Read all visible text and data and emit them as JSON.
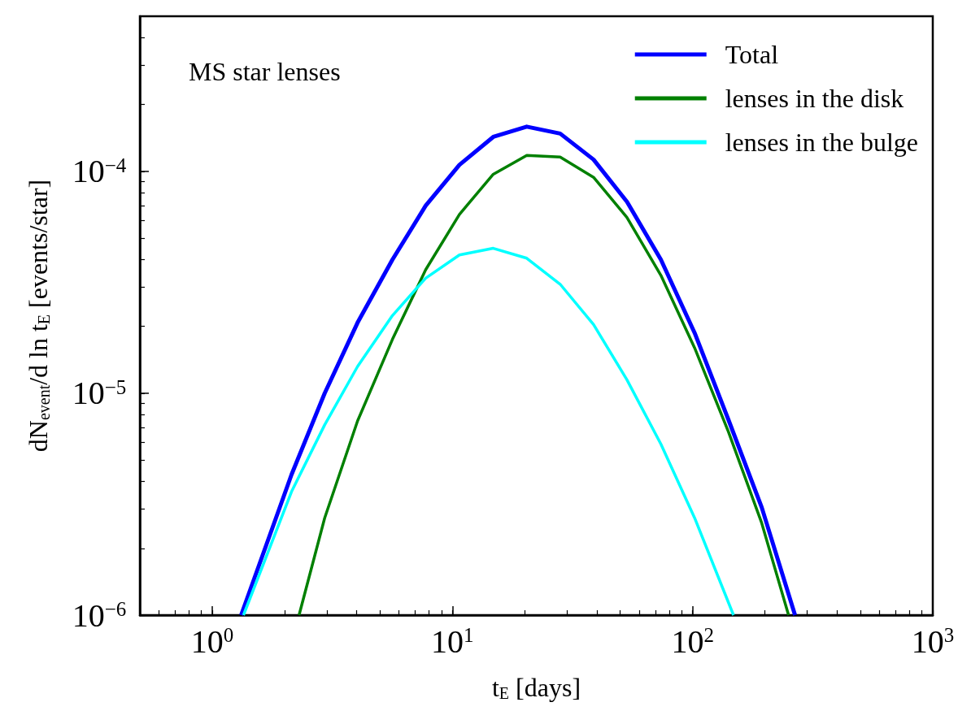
{
  "chart_data": {
    "type": "line",
    "xlabel": "t$_{E}$ [days]",
    "ylabel": "dN$_{event}$/d ln t$_{E}$ [events/star]",
    "annotations": [
      "MS star lenses"
    ],
    "log": "xy",
    "legend": "top right",
    "marker": "none",
    "line_style": "solid",
    "grid": false,
    "xlim": [
      0.5,
      1000
    ],
    "ylim": [
      1e-06,
      0.0005
    ],
    "xticks": [
      {
        "value": 0.6,
        "label": null
      },
      {
        "value": 0.7,
        "label": null
      },
      {
        "value": 0.8,
        "label": null
      },
      {
        "value": 0.9,
        "label": null
      },
      {
        "value": 1,
        "label": "10$^{0}$"
      },
      {
        "value": 2,
        "label": null
      },
      {
        "value": 3,
        "label": null
      },
      {
        "value": 4,
        "label": null
      },
      {
        "value": 5,
        "label": null
      },
      {
        "value": 6,
        "label": null
      },
      {
        "value": 7,
        "label": null
      },
      {
        "value": 8,
        "label": null
      },
      {
        "value": 9,
        "label": null
      },
      {
        "value": 10,
        "label": "10$^{1}$"
      },
      {
        "value": 20,
        "label": null
      },
      {
        "value": 30,
        "label": null
      },
      {
        "value": 40,
        "label": null
      },
      {
        "value": 50,
        "label": null
      },
      {
        "value": 60,
        "label": null
      },
      {
        "value": 70,
        "label": null
      },
      {
        "value": 80,
        "label": null
      },
      {
        "value": 90,
        "label": null
      },
      {
        "value": 100,
        "label": "10$^{2}$"
      },
      {
        "value": 200,
        "label": null
      },
      {
        "value": 300,
        "label": null
      },
      {
        "value": 400,
        "label": null
      },
      {
        "value": 500,
        "label": null
      },
      {
        "value": 600,
        "label": null
      },
      {
        "value": 700,
        "label": null
      },
      {
        "value": 800,
        "label": null
      },
      {
        "value": 900,
        "label": null
      },
      {
        "value": 1000,
        "label": "10$^{3}$"
      }
    ],
    "yticks": [
      {
        "value": 1e-06,
        "label": "10$^{−6}$"
      },
      {
        "value": 2e-06,
        "label": null
      },
      {
        "value": 3e-06,
        "label": null
      },
      {
        "value": 4e-06,
        "label": null
      },
      {
        "value": 5e-06,
        "label": null
      },
      {
        "value": 6e-06,
        "label": null
      },
      {
        "value": 7e-06,
        "label": null
      },
      {
        "value": 8e-06,
        "label": null
      },
      {
        "value": 9e-06,
        "label": null
      },
      {
        "value": 1e-05,
        "label": "10$^{−5}$"
      },
      {
        "value": 2e-05,
        "label": null
      },
      {
        "value": 3e-05,
        "label": null
      },
      {
        "value": 4e-05,
        "label": null
      },
      {
        "value": 5e-05,
        "label": null
      },
      {
        "value": 6e-05,
        "label": null
      },
      {
        "value": 7e-05,
        "label": null
      },
      {
        "value": 8e-05,
        "label": null
      },
      {
        "value": 9e-05,
        "label": null
      },
      {
        "value": 0.0001,
        "label": "10$^{−4}$"
      },
      {
        "value": 0.0002,
        "label": null
      },
      {
        "value": 0.0003,
        "label": null
      },
      {
        "value": 0.0004,
        "label": null
      }
    ],
    "series": [
      {
        "name": "Total",
        "color": "#0000ff",
        "x": [
          1.32,
          2.14,
          2.94,
          4.03,
          5.63,
          7.74,
          10.7,
          14.8,
          20.4,
          28.1,
          38.7,
          53.3,
          73.8,
          102,
          141,
          194,
          267
        ],
        "values": [
          1e-06,
          4.3e-06,
          1e-05,
          2.08e-05,
          4e-05,
          7e-05,
          0.000107,
          0.000143,
          0.000159,
          0.000148,
          0.000113,
          7.3e-05,
          4e-05,
          1.87e-05,
          7.6e-06,
          3.06e-06,
          1e-06
        ]
      },
      {
        "name": "lenses in the disk",
        "color": "#008000",
        "x": [
          2.3,
          2.94,
          4.03,
          5.63,
          7.74,
          10.7,
          14.8,
          20.4,
          28.1,
          38.7,
          53.3,
          73.8,
          102,
          141,
          194,
          251
        ],
        "values": [
          1e-06,
          2.74e-06,
          7.5e-06,
          1.75e-05,
          3.6e-05,
          6.4e-05,
          9.7e-05,
          0.000118,
          0.000116,
          9.4e-05,
          6.2e-05,
          3.4e-05,
          1.6e-05,
          6.7e-06,
          2.6e-06,
          1e-06
        ]
      },
      {
        "name": "lenses in the bulge",
        "color": "#00ffff",
        "x": [
          1.35,
          2.14,
          2.94,
          4.03,
          5.63,
          7.74,
          10.7,
          14.8,
          20.4,
          28.1,
          38.7,
          53.3,
          73.8,
          102,
          148
        ],
        "values": [
          1e-06,
          3.6e-06,
          7.2e-06,
          1.32e-05,
          2.24e-05,
          3.3e-05,
          4.2e-05,
          4.5e-05,
          4.06e-05,
          3.1e-05,
          2.04e-05,
          1.15e-05,
          5.9e-06,
          2.74e-06,
          1e-06
        ]
      }
    ]
  }
}
